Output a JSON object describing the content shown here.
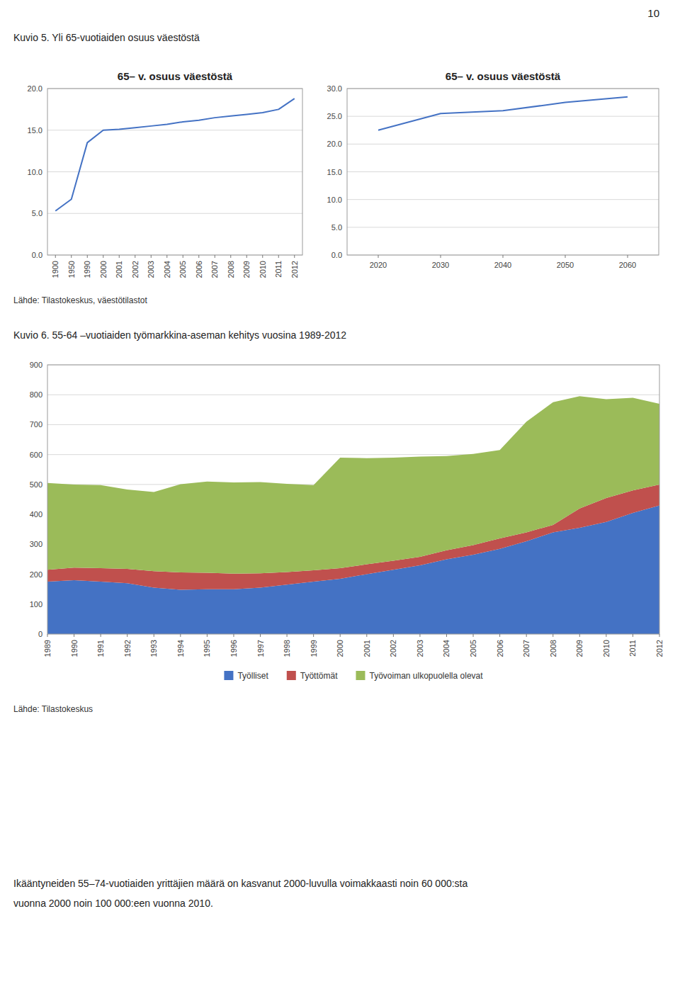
{
  "page_number": "10",
  "headings": [
    "Kuvio 5. Yli 65-vuotiaiden osuus väestöstä",
    "Kuvio 6. 55-64 –vuotiaiden työmarkkina-aseman kehitys vuosina 1989-2012"
  ],
  "sources": [
    "Lähde: Tilastokeskus, väestötilastot",
    "Lähde: Tilastokeskus"
  ],
  "footer": [
    "Ikääntyneiden 55–74-vuotiaiden yrittäjien määrä on kasvanut 2000-luvulla voimakkaasti noin 60 000:sta",
    "vuonna 2000 noin 100 000:een vuonna 2010."
  ],
  "chart_data": [
    {
      "type": "line",
      "title": "65– v. osuus väestöstä",
      "categories": [
        "1900",
        "1950",
        "1990",
        "2000",
        "2001",
        "2002",
        "2003",
        "2004",
        "2005",
        "2006",
        "2007",
        "2008",
        "2009",
        "2010",
        "2011",
        "2012"
      ],
      "values": [
        5.3,
        6.7,
        13.5,
        15.0,
        15.1,
        15.3,
        15.5,
        15.7,
        16.0,
        16.2,
        16.5,
        16.7,
        16.9,
        17.1,
        17.5,
        18.8
      ],
      "color": "#4472C4",
      "ylim": [
        0,
        20
      ],
      "yticks": [
        {
          "value": 0,
          "label": "0.0"
        },
        {
          "value": 5,
          "label": "5.0"
        },
        {
          "value": 10,
          "label": "10.0"
        },
        {
          "value": 15,
          "label": "15.0"
        },
        {
          "value": 20,
          "label": "20.0"
        }
      ],
      "grid": true
    },
    {
      "type": "line",
      "title": "65– v. osuus väestöstä",
      "x": [
        2020,
        2030,
        2040,
        2050,
        2060
      ],
      "values": [
        22.5,
        25.5,
        26.0,
        27.5,
        28.5
      ],
      "color": "#4472C4",
      "xlim": [
        2015,
        2065
      ],
      "xticks": [
        2020,
        2030,
        2040,
        2050,
        2060
      ],
      "ylim": [
        0,
        30
      ],
      "yticks": [
        {
          "value": 0,
          "label": "0.0"
        },
        {
          "value": 5,
          "label": "5.0"
        },
        {
          "value": 10,
          "label": "10.0"
        },
        {
          "value": 15,
          "label": "15.0"
        },
        {
          "value": 20,
          "label": "20.0"
        },
        {
          "value": 25,
          "label": "25.0"
        },
        {
          "value": 30,
          "label": "30.0"
        }
      ],
      "grid": true
    },
    {
      "type": "area",
      "stacked": true,
      "categories": [
        "1989",
        "1990",
        "1991",
        "1992",
        "1993",
        "1994",
        "1995",
        "1996",
        "1997",
        "1998",
        "1999",
        "2000",
        "2001",
        "2002",
        "2003",
        "2004",
        "2005",
        "2006",
        "2007",
        "2008",
        "2009",
        "2010",
        "2011",
        "2012"
      ],
      "series": [
        {
          "name": "Työlliset",
          "color": "#4472C4",
          "values": [
            175,
            180,
            175,
            170,
            155,
            148,
            150,
            150,
            155,
            165,
            175,
            185,
            200,
            215,
            230,
            250,
            265,
            285,
            310,
            340,
            355,
            375,
            405,
            430
          ]
        },
        {
          "name": "Työttömät",
          "color": "#C0504D",
          "values": [
            40,
            42,
            45,
            48,
            55,
            58,
            55,
            52,
            48,
            42,
            38,
            35,
            33,
            30,
            28,
            30,
            32,
            35,
            30,
            25,
            65,
            80,
            75,
            70
          ]
        },
        {
          "name": "Työvoiman ulkopuolella olevat",
          "color": "#9BBB59",
          "values": [
            290,
            278,
            278,
            265,
            265,
            295,
            305,
            305,
            305,
            295,
            285,
            370,
            355,
            345,
            335,
            315,
            305,
            295,
            370,
            410,
            375,
            330,
            310,
            270
          ]
        }
      ],
      "ylim": [
        0,
        900
      ],
      "yticks": [
        0,
        100,
        200,
        300,
        400,
        500,
        600,
        700,
        800,
        900
      ],
      "grid": true,
      "legend": "bottom"
    }
  ]
}
